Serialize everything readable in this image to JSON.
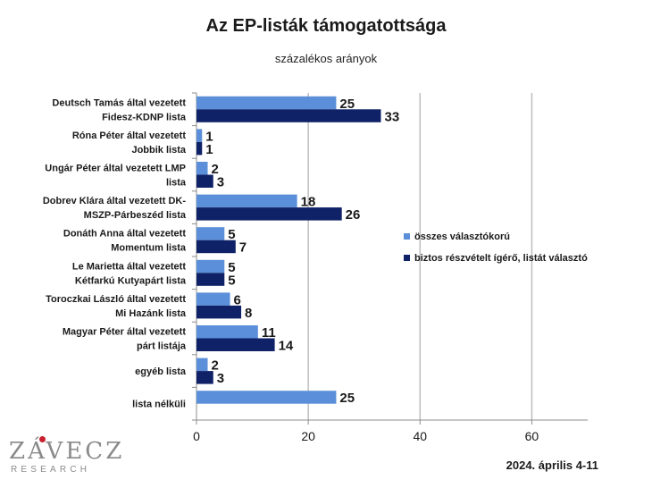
{
  "chart_data": {
    "type": "bar",
    "orientation": "horizontal",
    "title": "Az EP-listák támogatottsága",
    "subtitle": "százalékos arányok",
    "categories": [
      [
        "Deutsch Tamás által vezetett",
        "Fidesz-KDNP lista"
      ],
      [
        "Róna Péter által vezetett",
        "Jobbik lista"
      ],
      [
        "Ungár Péter által vezetett LMP",
        "lista"
      ],
      [
        "Dobrev Klára által vezetett DK-",
        "MSZP-Párbeszéd lista"
      ],
      [
        "Donáth Anna által vezetett",
        "Momentum lista"
      ],
      [
        "Le Marietta által vezetett",
        "Kétfarkú Kutyapárt lista"
      ],
      [
        "Toroczkai László által vezetett",
        "Mi Hazánk lista"
      ],
      [
        "Magyar Péter által vezetett",
        "párt listája"
      ],
      [
        "egyéb lista"
      ],
      [
        "lista nélküli"
      ]
    ],
    "series": [
      {
        "name": "összes választókorú",
        "color": "#5b8fd9",
        "values": [
          25,
          1,
          2,
          18,
          5,
          5,
          6,
          11,
          2,
          25
        ]
      },
      {
        "name": "biztos részvételt ígérő, listát választó",
        "color": "#0f2167",
        "values": [
          33,
          1,
          3,
          26,
          7,
          5,
          8,
          14,
          3,
          null
        ]
      }
    ],
    "xlim": [
      0,
      70
    ],
    "xticks": [
      0,
      20,
      40,
      60
    ],
    "grid": true,
    "legend_position": "right"
  },
  "logo": {
    "name": "ZÁVECZ",
    "sub": "RESEARCH"
  },
  "date": "2024. április 4-11"
}
